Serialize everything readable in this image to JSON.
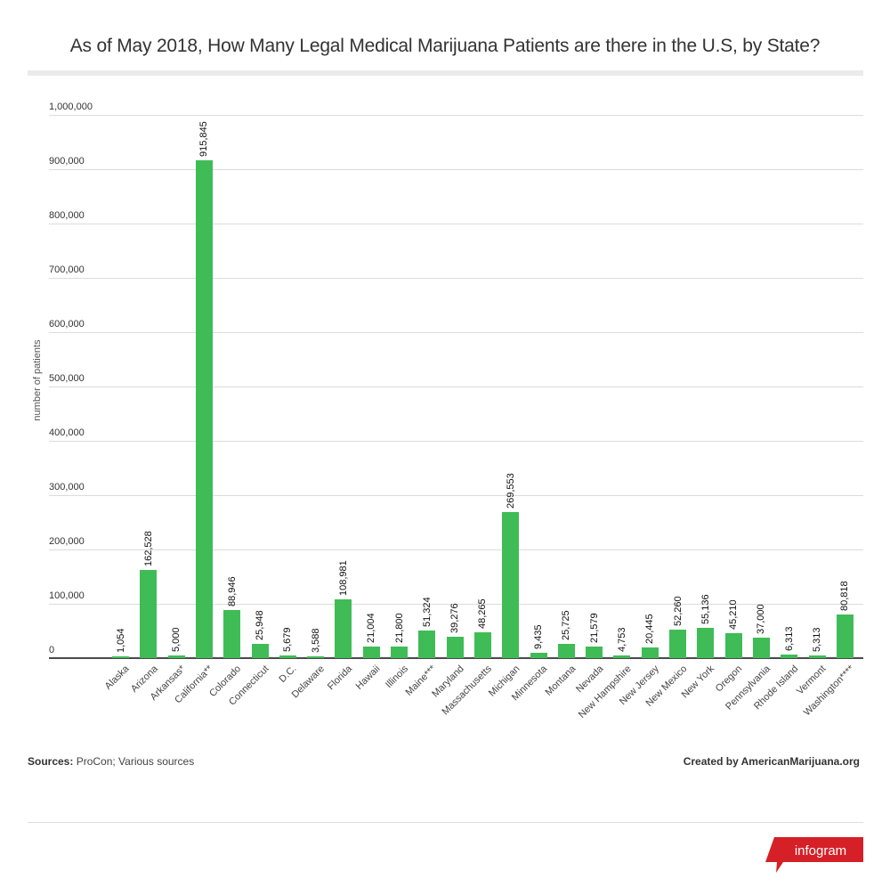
{
  "header": {
    "title": "As of May 2018, How Many Legal Medical Marijuana Patients are there in the U.S, by State?"
  },
  "footer": {
    "sources_label": "Sources:",
    "sources_text": "ProCon; Various sources",
    "credit": "Created by AmericanMarijuana.org",
    "brand": "infogram",
    "brand_color": "#d52027"
  },
  "colors": {
    "bar": "#3fbc56",
    "gridline": "#dcdcdc",
    "axis": "#4a4a4a"
  },
  "chart_data": {
    "type": "bar",
    "title": "As of May 2018, How Many Legal Medical Marijuana Patients are there in the U.S, by State?",
    "xlabel": "",
    "ylabel": "number of patients",
    "ylim": [
      0,
      1000000
    ],
    "yticks": [
      0,
      100000,
      200000,
      300000,
      400000,
      500000,
      600000,
      700000,
      800000,
      900000,
      1000000
    ],
    "ytick_labels": [
      "0",
      "100,000",
      "200,000",
      "300,000",
      "400,000",
      "500,000",
      "600,000",
      "700,000",
      "800,000",
      "900,000",
      "1,000,000"
    ],
    "grid": true,
    "legend": null,
    "categories": [
      "Alaska",
      "Arizona",
      "Arkansas*",
      "California**",
      "Colorado",
      "Connecticut",
      "D.C.",
      "Delaware",
      "Florida",
      "Hawaii",
      "Illinois",
      "Maine***",
      "Maryland",
      "Massachusetts",
      "Michigan",
      "Minnesota",
      "Montana",
      "Nevada",
      "New Hampshire",
      "New Jersey",
      "New Mexico",
      "New York",
      "Oregon",
      "Pennsylvania",
      "Rhode Island",
      "Vermont",
      "Washington****"
    ],
    "values": [
      1054,
      162528,
      5000,
      915845,
      88946,
      25948,
      5679,
      3588,
      108981,
      21004,
      21800,
      51324,
      39276,
      48265,
      269553,
      9435,
      25725,
      21579,
      4753,
      20445,
      52260,
      55136,
      45210,
      37000,
      6313,
      5313,
      80818
    ],
    "value_labels": [
      "1,054",
      "162,528",
      "5,000",
      "915,845",
      "88,946",
      "25,948",
      "5,679",
      "3,588",
      "108,981",
      "21,004",
      "21,800",
      "51,324",
      "39,276",
      "48,265",
      "269,553",
      "9,435",
      "25,725",
      "21,579",
      "4,753",
      "20,445",
      "52,260",
      "55,136",
      "45,210",
      "37,000",
      "6,313",
      "5,313",
      "80,818"
    ]
  }
}
